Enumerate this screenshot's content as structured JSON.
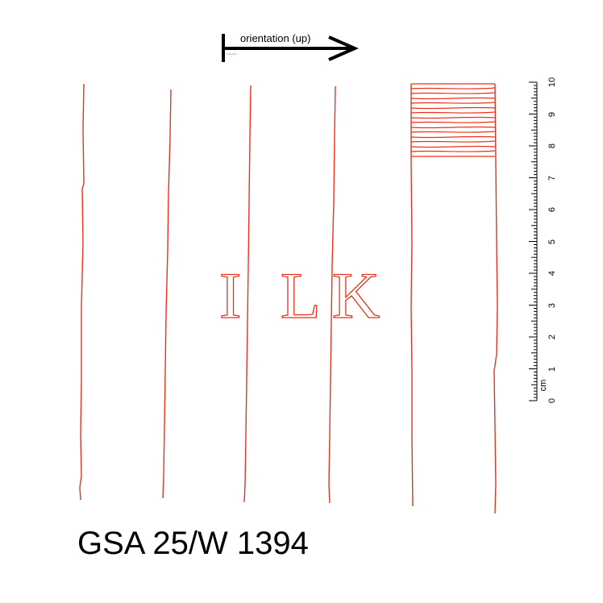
{
  "orientation": {
    "label": "orientation (up)",
    "note": "GSA 25/1"
  },
  "scale": {
    "unit": "cm",
    "labels": [
      "0",
      "1",
      "2",
      "3",
      "4",
      "5",
      "6",
      "7",
      "8",
      "9",
      "10"
    ]
  },
  "inscription": {
    "text": "I LK"
  },
  "catalog_id": "GSA 25/W 1394",
  "colors": {
    "ink": "#e8321c",
    "text": "#000000"
  }
}
